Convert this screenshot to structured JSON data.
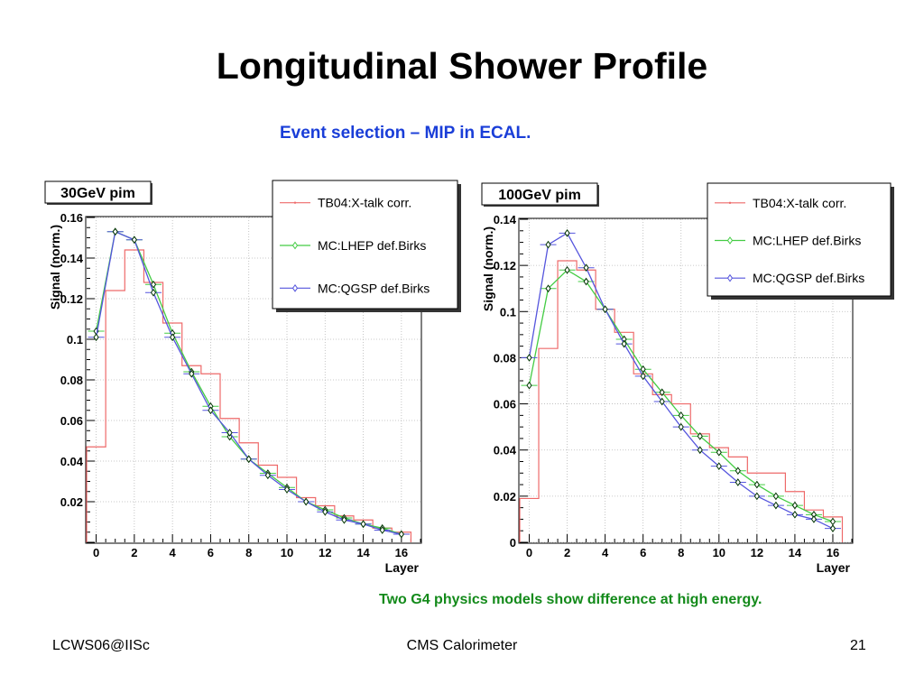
{
  "slide": {
    "title": "Longitudinal Shower Profile",
    "subtitle": "Event selection – MIP in ECAL.",
    "note": "Two G4 physics models show difference at high energy.",
    "footer_left": "LCWS06@IISc",
    "footer_center": "CMS Calorimeter",
    "footer_right": "21"
  },
  "colors": {
    "data": "#ee6a6a",
    "lhep": "#44cc44",
    "qgsp": "#5555dd",
    "note": "#138a1a",
    "subtitle": "#1a3ed8"
  },
  "chart_data": [
    {
      "type": "line",
      "title": "30GeV pim",
      "xlabel": "Layer",
      "ylabel": "Signal (norm.)",
      "xlim": [
        -0.5,
        17
      ],
      "ylim": [
        0,
        0.16
      ],
      "xticks": [
        0,
        2,
        4,
        6,
        8,
        10,
        12,
        14,
        16
      ],
      "xtick_labels": [
        "0",
        "2",
        "4",
        "6",
        "8",
        "10",
        "12",
        "14",
        "16"
      ],
      "yticks": [
        0.02,
        0.04,
        0.06,
        0.08,
        0.1,
        0.12,
        0.14,
        0.16
      ],
      "ytick_labels": [
        "0.02",
        "0.04",
        "0.06",
        "0.08",
        "0.1",
        "0.12",
        "0.14",
        "0.16"
      ],
      "grid": true,
      "legend_position": "top-right",
      "x": [
        0,
        1,
        2,
        3,
        4,
        5,
        6,
        7,
        8,
        9,
        10,
        11,
        12,
        13,
        14,
        15,
        16
      ],
      "series": [
        {
          "name": "TB04:X-talk corr.",
          "style": "histogram",
          "values": [
            0.047,
            0.124,
            0.144,
            0.128,
            0.108,
            0.087,
            0.083,
            0.061,
            0.049,
            0.038,
            0.032,
            0.022,
            0.018,
            0.013,
            0.011,
            0.007,
            0.005
          ]
        },
        {
          "name": "MC:LHEP def.Birks",
          "style": "line-markers",
          "values": [
            0.104,
            0.153,
            0.149,
            0.127,
            0.103,
            0.084,
            0.067,
            0.052,
            0.041,
            0.034,
            0.027,
            0.02,
            0.016,
            0.012,
            0.009,
            0.007,
            0.004
          ]
        },
        {
          "name": "MC:QGSP def.Birks",
          "style": "line-markers",
          "values": [
            0.101,
            0.153,
            0.149,
            0.123,
            0.101,
            0.083,
            0.065,
            0.054,
            0.041,
            0.033,
            0.026,
            0.02,
            0.015,
            0.011,
            0.009,
            0.006,
            0.004
          ]
        }
      ]
    },
    {
      "type": "line",
      "title": "100GeV pim",
      "xlabel": "Layer",
      "ylabel": "Signal (norm.)",
      "xlim": [
        -0.5,
        17
      ],
      "ylim": [
        0,
        0.14
      ],
      "xticks": [
        0,
        2,
        4,
        6,
        8,
        10,
        12,
        14,
        16
      ],
      "xtick_labels": [
        "0",
        "2",
        "4",
        "6",
        "8",
        "10",
        "12",
        "14",
        "16"
      ],
      "yticks": [
        0,
        0.02,
        0.04,
        0.06,
        0.08,
        0.1,
        0.12,
        0.14
      ],
      "ytick_labels": [
        "0",
        "0.02",
        "0.04",
        "0.06",
        "0.08",
        "0.1",
        "0.12",
        "0.14"
      ],
      "grid": true,
      "legend_position": "top-right",
      "x": [
        0,
        1,
        2,
        3,
        4,
        5,
        6,
        7,
        8,
        9,
        10,
        11,
        12,
        13,
        14,
        15,
        16
      ],
      "series": [
        {
          "name": "TB04:X-talk corr.",
          "style": "histogram",
          "values": [
            0.019,
            0.084,
            0.122,
            0.118,
            0.101,
            0.091,
            0.073,
            0.064,
            0.06,
            0.047,
            0.041,
            0.037,
            0.03,
            0.03,
            0.022,
            0.014,
            0.011
          ]
        },
        {
          "name": "MC:LHEP def.Birks",
          "style": "line-markers",
          "values": [
            0.068,
            0.11,
            0.118,
            0.113,
            0.101,
            0.088,
            0.075,
            0.065,
            0.055,
            0.046,
            0.039,
            0.031,
            0.025,
            0.02,
            0.016,
            0.012,
            0.009
          ]
        },
        {
          "name": "MC:QGSP def.Birks",
          "style": "line-markers",
          "values": [
            0.08,
            0.129,
            0.134,
            0.119,
            0.101,
            0.086,
            0.072,
            0.061,
            0.05,
            0.04,
            0.033,
            0.026,
            0.02,
            0.016,
            0.012,
            0.01,
            0.006
          ]
        }
      ]
    }
  ]
}
